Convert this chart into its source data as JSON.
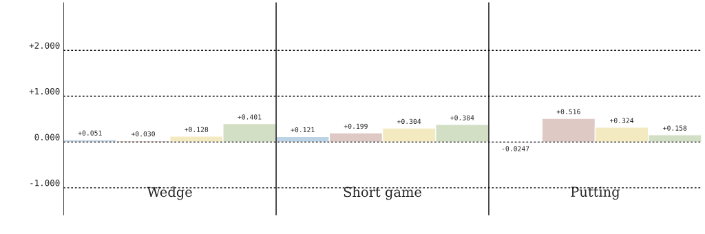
{
  "chart_data": {
    "type": "bar",
    "categories": [
      "Wedge",
      "Short game",
      "Putting"
    ],
    "series": [
      {
        "color": "#b5d3ec",
        "values": [
          0.051,
          0.121,
          -0.0247
        ],
        "value_labels": [
          "+0.051",
          "+0.121",
          "-0.0247"
        ]
      },
      {
        "color": "#e3c6c0",
        "values": [
          0.03,
          0.199,
          0.516
        ],
        "value_labels": [
          "+0.030",
          "+0.199",
          "+0.516"
        ]
      },
      {
        "color": "#fdefb9",
        "values": [
          0.128,
          0.304,
          0.324
        ],
        "value_labels": [
          "+0.128",
          "+0.304",
          "+0.324"
        ]
      },
      {
        "color": "#d2e3c1",
        "values": [
          0.401,
          0.384,
          0.158
        ],
        "value_labels": [
          "+0.401",
          "+0.384",
          "+0.158"
        ]
      }
    ],
    "ylim": [
      -1.6,
      3.05
    ],
    "yticks": [
      {
        "value": -1,
        "label": "-1.000"
      },
      {
        "value": 0,
        "label": "0.000"
      },
      {
        "value": 1,
        "label": "+1.000"
      },
      {
        "value": 2,
        "label": "+2.000"
      }
    ],
    "grid": "y"
  }
}
